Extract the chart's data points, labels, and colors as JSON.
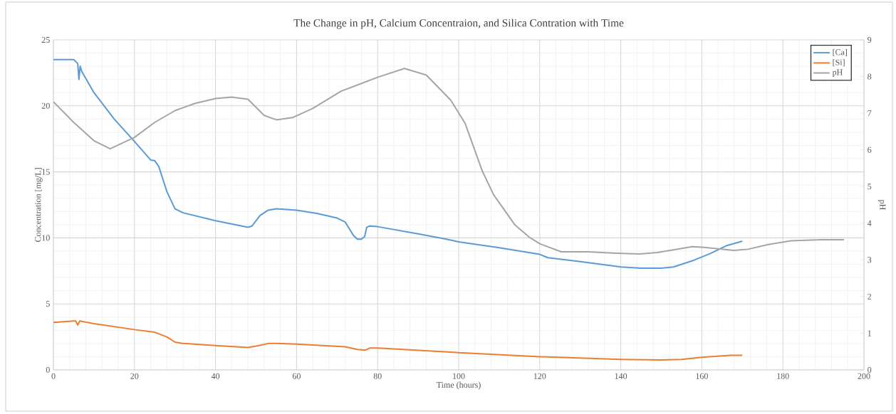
{
  "chart_data": {
    "type": "line",
    "title": "The Change in pH, Calcium Concentraion, and Silica Contration with Time",
    "xlabel": "Time (hours)",
    "ylabel": "Concentration [mg/L]",
    "y2label": "pH",
    "xlim": [
      0,
      200
    ],
    "xticks": [
      0,
      20,
      40,
      60,
      80,
      100,
      120,
      140,
      160,
      180,
      200
    ],
    "ylim": [
      0,
      25
    ],
    "yticks": [
      0,
      5,
      10,
      15,
      20,
      25
    ],
    "y2lim": [
      0,
      9
    ],
    "y2ticks": [
      0,
      1,
      2,
      3,
      4,
      5,
      6,
      7,
      8,
      9
    ],
    "grid": true,
    "legend": "top right",
    "marker": "none",
    "line_style": "solid",
    "series": [
      {
        "name": "[Ca]",
        "color": "#5b9bd5",
        "x": [
          0,
          5,
          6,
          6.3,
          6.6,
          7,
          10,
          15,
          20,
          24,
          25,
          26,
          28,
          30,
          32,
          40,
          48,
          49,
          51,
          53,
          55,
          60,
          65,
          70,
          72,
          74,
          75,
          76,
          76.8,
          77.3,
          78,
          80,
          90,
          97,
          100,
          110,
          120,
          122,
          130,
          140,
          145,
          150,
          153,
          158,
          162,
          166,
          170
        ],
        "values": [
          23.5,
          23.5,
          23.2,
          22.0,
          23.0,
          22.6,
          21.0,
          19.0,
          17.3,
          15.9,
          15.85,
          15.4,
          13.5,
          12.2,
          11.9,
          11.3,
          10.8,
          10.9,
          11.7,
          12.1,
          12.2,
          12.1,
          11.85,
          11.5,
          11.2,
          10.2,
          9.9,
          9.9,
          10.1,
          10.8,
          10.9,
          10.85,
          10.3,
          9.9,
          9.7,
          9.25,
          8.75,
          8.5,
          8.2,
          7.8,
          7.7,
          7.7,
          7.8,
          8.3,
          8.8,
          9.4,
          9.75
        ]
      },
      {
        "name": "[Si]",
        "color": "#ed7d31",
        "x": [
          0,
          5,
          5.5,
          6,
          6.5,
          10,
          20,
          25,
          28,
          30,
          32,
          40,
          48,
          50,
          53,
          55,
          60,
          72,
          75,
          77,
          78,
          80,
          98,
          100,
          120,
          140,
          150,
          155,
          160,
          167,
          170
        ],
        "values": [
          3.6,
          3.7,
          3.7,
          3.4,
          3.7,
          3.5,
          3.05,
          2.85,
          2.5,
          2.1,
          2.0,
          1.85,
          1.7,
          1.8,
          2.0,
          2.0,
          1.95,
          1.75,
          1.55,
          1.5,
          1.65,
          1.65,
          1.35,
          1.3,
          1.0,
          0.8,
          0.75,
          0.8,
          0.95,
          1.1,
          1.1
        ]
      },
      {
        "name": "pH",
        "color": "#a5a5a5",
        "axis": "y2",
        "x": [
          0,
          5,
          10,
          14,
          20,
          25,
          30,
          35,
          40,
          44,
          48,
          52,
          55,
          59,
          64,
          71,
          80,
          86.6,
          92,
          98,
          101.6,
          105.8,
          108.6,
          113.9,
          117.4,
          120,
          125.3,
          131.8,
          139,
          144.7,
          149,
          157.7,
          160.6,
          167.8,
          171.4,
          176.4,
          182,
          189.4,
          195.1
        ],
        "values": [
          7.31,
          6.75,
          6.25,
          6.03,
          6.34,
          6.75,
          7.07,
          7.27,
          7.4,
          7.44,
          7.38,
          6.94,
          6.82,
          6.88,
          7.13,
          7.6,
          7.98,
          8.22,
          8.04,
          7.36,
          6.72,
          5.43,
          4.78,
          3.95,
          3.62,
          3.44,
          3.22,
          3.22,
          3.18,
          3.16,
          3.2,
          3.36,
          3.34,
          3.26,
          3.29,
          3.42,
          3.52,
          3.55,
          3.55
        ]
      }
    ]
  }
}
